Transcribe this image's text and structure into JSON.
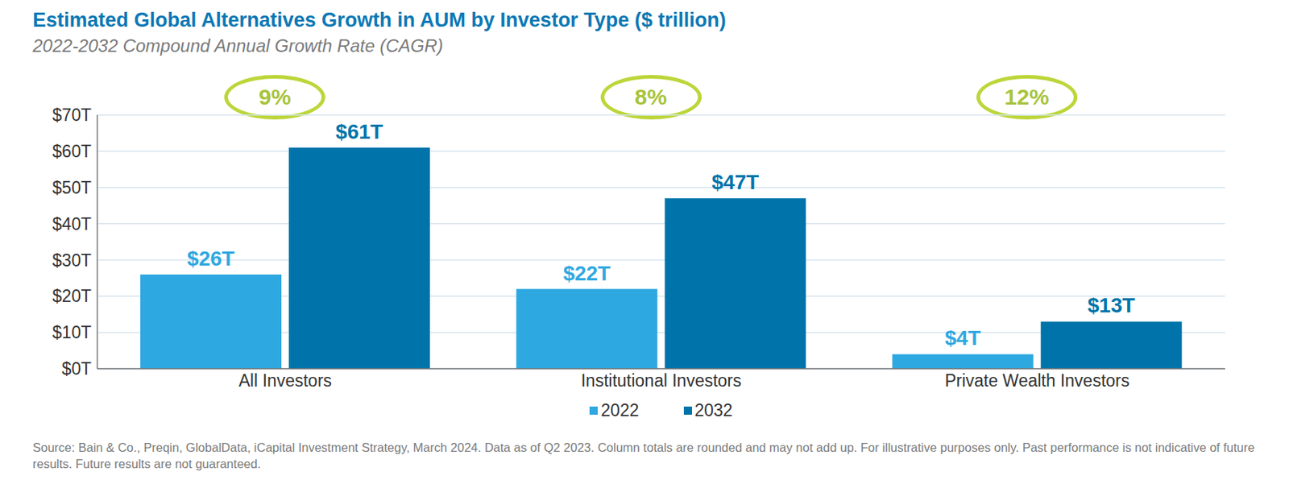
{
  "chart_data": {
    "type": "bar",
    "title": "Estimated Global Alternatives Growth in AUM by Investor Type ($ trillion)",
    "subtitle": "2022-2032 Compound Annual Growth Rate (CAGR)",
    "categories": [
      "All Investors",
      "Institutional Investors",
      "Private Wealth Investors"
    ],
    "series": [
      {
        "name": "2022",
        "color": "#2ea8e1",
        "values": [
          26,
          22,
          4
        ],
        "value_labels": [
          "$26T",
          "$22T",
          "$4T"
        ]
      },
      {
        "name": "2032",
        "color": "#0074aa",
        "values": [
          61,
          47,
          13
        ],
        "value_labels": [
          "$61T",
          "$47T",
          "$13T"
        ]
      }
    ],
    "annotations": [
      "9%",
      "8%",
      "12%"
    ],
    "ylim": [
      0,
      70
    ],
    "yticks": [
      {
        "value": 0,
        "label": "$0T"
      },
      {
        "value": 10,
        "label": "$10T"
      },
      {
        "value": 20,
        "label": "$20T"
      },
      {
        "value": 30,
        "label": "$30T"
      },
      {
        "value": 40,
        "label": "$40T"
      },
      {
        "value": 50,
        "label": "$50T"
      },
      {
        "value": 60,
        "label": "$60T"
      },
      {
        "value": 70,
        "label": "$70T"
      }
    ],
    "grid": true,
    "data_labels": true,
    "legend": "bottom",
    "footnote": "Source: Bain & Co., Preqin, GlobalData, iCapital Investment Strategy, March 2024. Data as of Q2 2023. Column totals are rounded and may not add up. For illustrative purposes only. Past performance is not indicative of future results. Future results are not guaranteed."
  }
}
